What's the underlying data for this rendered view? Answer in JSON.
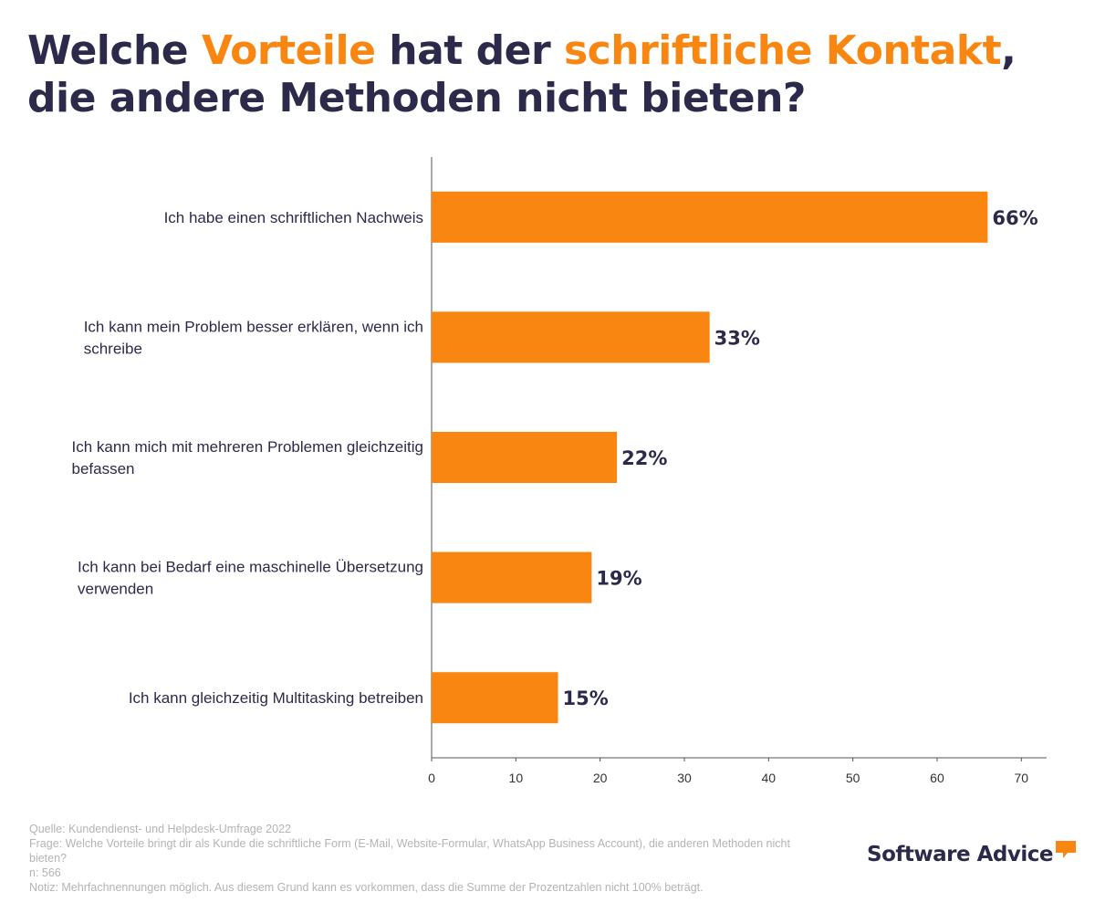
{
  "title": {
    "part1": "Welche ",
    "hl1": "Vorteile",
    "part2": " hat der ",
    "hl2": "schriftliche Kontakt",
    "part3": ", die andere Methoden nicht bieten?"
  },
  "colors": {
    "bar": "#f98611",
    "text": "#2c2a4a",
    "highlight": "#f98611",
    "footer": "#b4b4b4"
  },
  "chart_data": {
    "type": "bar",
    "orientation": "horizontal",
    "categories": [
      [
        "Ich habe einen schriftlichen Nachweis"
      ],
      [
        "Ich kann mein Problem besser erklären, wenn ich",
        "schreibe"
      ],
      [
        "Ich kann mich mit mehreren Problemen gleichzeitig",
        "befassen"
      ],
      [
        "Ich kann bei Bedarf eine maschinelle Übersetzung",
        "verwenden"
      ],
      [
        "Ich kann gleichzeitig Multitasking betreiben"
      ]
    ],
    "values": [
      66,
      33,
      22,
      19,
      15
    ],
    "value_labels": [
      "66%",
      "33%",
      "22%",
      "19%",
      "15%"
    ],
    "xlim": [
      0,
      73
    ],
    "xticks": [
      0,
      10,
      20,
      30,
      40,
      50,
      60,
      70
    ],
    "xlabel": "",
    "ylabel": "",
    "grid": false,
    "legend": "none"
  },
  "footer": {
    "source": "Quelle: Kundendienst- und Helpdesk-Umfrage 2022",
    "question": "Frage: Welche Vorteile bringt dir als Kunde die schriftliche Form (E-Mail, Website-Formular, WhatsApp Business Account), die anderen Methoden nicht bieten?",
    "n": "n: 566",
    "note": "Notiz: Mehrfachnennungen möglich. Aus diesem Grund kann es vorkommen, dass die Summe der Prozentzahlen nicht 100% beträgt."
  },
  "logo": {
    "text": "Software Advice",
    "mark": "speech-bubble-icon"
  }
}
